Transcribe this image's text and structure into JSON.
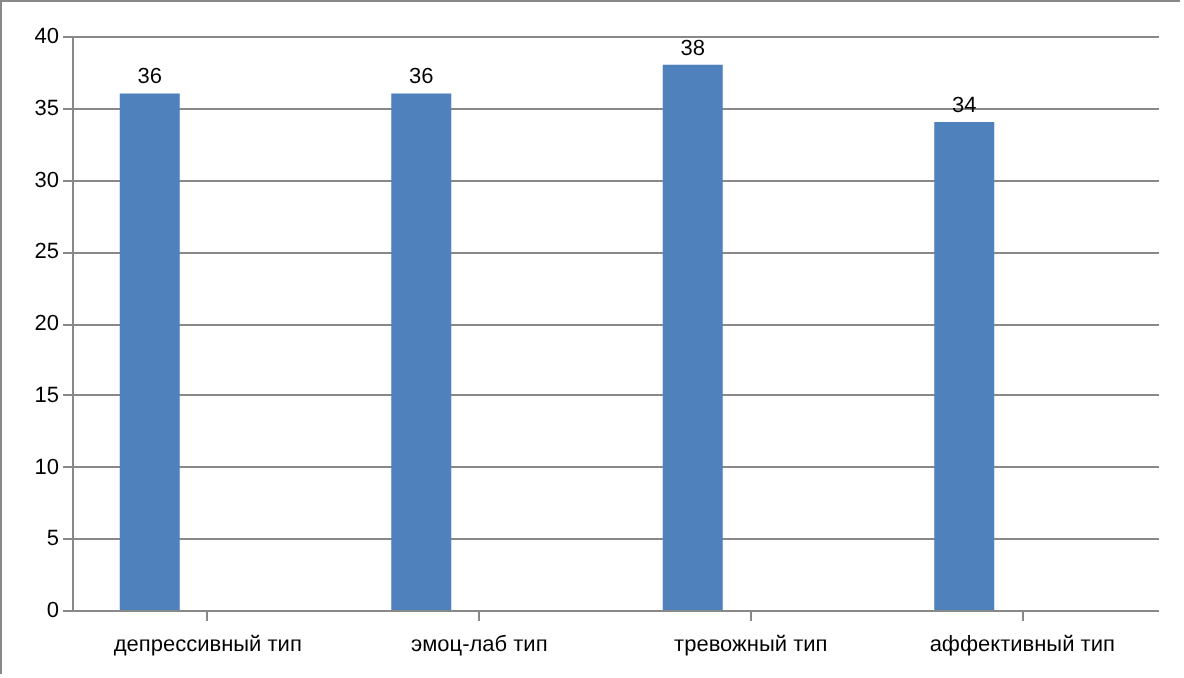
{
  "chart_data": {
    "type": "bar",
    "categories": [
      "депрессивный тип",
      "эмоц-лаб тип",
      "тревожный тип",
      "аффективный тип"
    ],
    "values": [
      36,
      36,
      38,
      34
    ],
    "color": "#4f81bd",
    "ylim": [
      0,
      40
    ],
    "yticks": [
      0,
      5,
      10,
      15,
      20,
      25,
      30,
      35,
      40
    ],
    "grid": "y",
    "data_labels": true
  }
}
